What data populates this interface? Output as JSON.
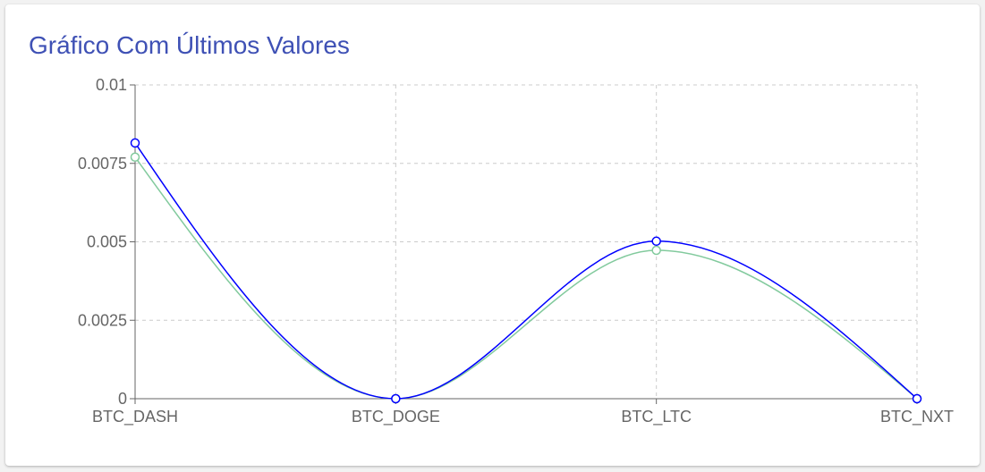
{
  "card": {
    "title": "Gráfico Com Últimos Valores"
  },
  "colors": {
    "title": "#3f51b5",
    "grid": "#cccccc",
    "axis": "#666666"
  },
  "chart_data": {
    "type": "line",
    "title": "Gráfico Com Últimos Valores",
    "xlabel": "",
    "ylabel": "",
    "categories": [
      "BTC_DASH",
      "BTC_DOGE",
      "BTC_LTC",
      "BTC_NXT"
    ],
    "ylim": [
      0,
      0.01
    ],
    "yticks": [
      "0",
      "0.0025",
      "0.005",
      "0.0075",
      "0.01"
    ],
    "ytick_values": [
      0,
      0.0025,
      0.005,
      0.0075,
      0.01
    ],
    "grid": true,
    "legend": "none",
    "curve": "smooth",
    "series": [
      {
        "color": "#0000ff",
        "values": [
          0.00815,
          0.0,
          0.00502,
          0.0
        ]
      },
      {
        "color": "#82ca9d",
        "values": [
          0.0077,
          0.0,
          0.00473,
          0.0
        ]
      }
    ]
  }
}
